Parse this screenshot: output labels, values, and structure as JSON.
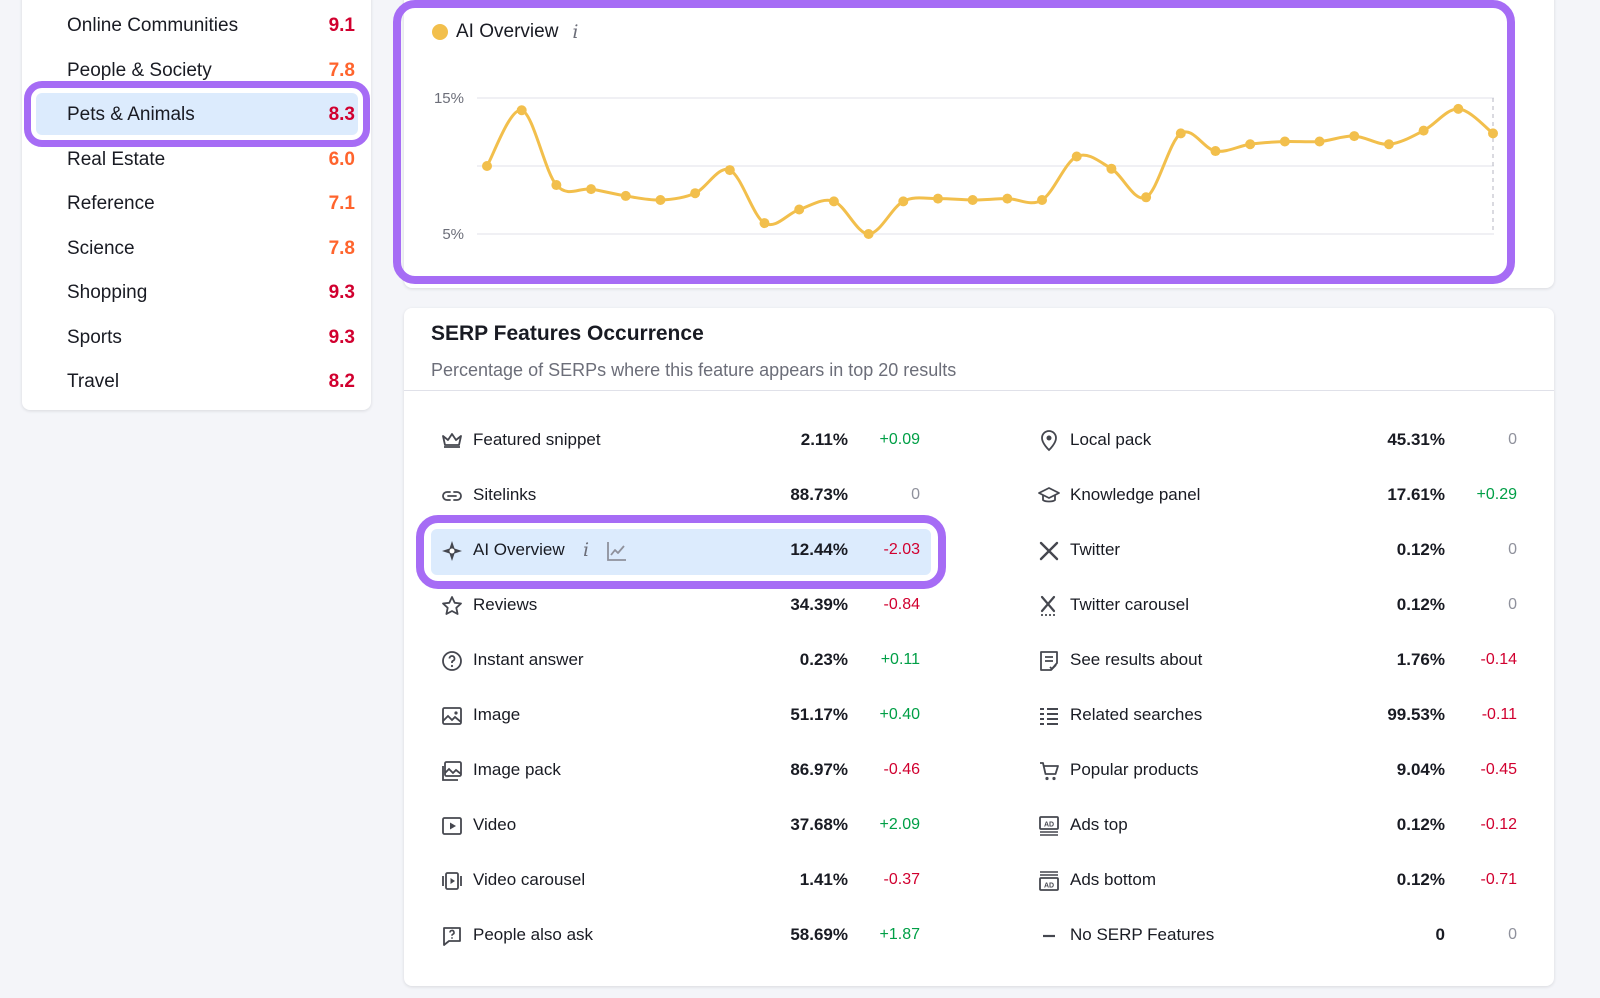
{
  "colors": {
    "accent": "#a66cf5",
    "selection": "#dcebfd",
    "series": "#f2bf4c",
    "positive": "#009f46",
    "negative": "#d1002f",
    "score_red": "#d1002f",
    "score_orange": "#ff642d"
  },
  "categories": [
    {
      "name": "Online Communities",
      "score": "9.1",
      "tone": "red"
    },
    {
      "name": "People & Society",
      "score": "7.8",
      "tone": "orange"
    },
    {
      "name": "Pets & Animals",
      "score": "8.3",
      "tone": "red",
      "selected": true
    },
    {
      "name": "Real Estate",
      "score": "6.0",
      "tone": "orange"
    },
    {
      "name": "Reference",
      "score": "7.1",
      "tone": "orange"
    },
    {
      "name": "Science",
      "score": "7.8",
      "tone": "orange"
    },
    {
      "name": "Shopping",
      "score": "9.3",
      "tone": "red"
    },
    {
      "name": "Sports",
      "score": "9.3",
      "tone": "red"
    },
    {
      "name": "Travel",
      "score": "8.2",
      "tone": "red"
    }
  ],
  "chart": {
    "legend_label": "AI Overview",
    "info_icon": "i",
    "y_ticks": [
      "15%",
      "5%"
    ]
  },
  "chart_data": {
    "type": "line",
    "series": [
      {
        "name": "AI Overview",
        "values": [
          10.0,
          14.1,
          8.6,
          8.3,
          7.8,
          7.5,
          8.0,
          9.7,
          5.8,
          6.8,
          7.4,
          5.0,
          7.4,
          7.6,
          7.5,
          7.6,
          7.5,
          10.7,
          9.8,
          7.7,
          12.4,
          11.1,
          11.6,
          11.8,
          11.8,
          12.2,
          11.6,
          12.6,
          14.2,
          12.4
        ]
      }
    ],
    "ylim": [
      5,
      15
    ],
    "y_ticks": [
      "15%",
      "5%"
    ],
    "grid": true
  },
  "serp": {
    "title": "SERP Features Occurrence",
    "subtitle": "Percentage of SERPs where this feature appears in top 20 results",
    "left": [
      {
        "icon": "crown-icon",
        "name": "Featured snippet",
        "value": "2.11%",
        "delta": "+0.09",
        "sign": "pos"
      },
      {
        "icon": "link-icon",
        "name": "Sitelinks",
        "value": "88.73%",
        "delta": "0",
        "sign": "zero"
      },
      {
        "icon": "ai-sparkle-icon",
        "name": "AI Overview",
        "value": "12.44%",
        "delta": "-2.03",
        "sign": "neg",
        "highlight": true
      },
      {
        "icon": "star-icon",
        "name": "Reviews",
        "value": "34.39%",
        "delta": "-0.84",
        "sign": "neg"
      },
      {
        "icon": "question-icon",
        "name": "Instant answer",
        "value": "0.23%",
        "delta": "+0.11",
        "sign": "pos"
      },
      {
        "icon": "image-icon",
        "name": "Image",
        "value": "51.17%",
        "delta": "+0.40",
        "sign": "pos"
      },
      {
        "icon": "image-pack-icon",
        "name": "Image pack",
        "value": "86.97%",
        "delta": "-0.46",
        "sign": "neg"
      },
      {
        "icon": "video-icon",
        "name": "Video",
        "value": "37.68%",
        "delta": "+2.09",
        "sign": "pos"
      },
      {
        "icon": "video-carousel-icon",
        "name": "Video carousel",
        "value": "1.41%",
        "delta": "-0.37",
        "sign": "neg"
      },
      {
        "icon": "people-ask-icon",
        "name": "People also ask",
        "value": "58.69%",
        "delta": "+1.87",
        "sign": "pos"
      }
    ],
    "right": [
      {
        "icon": "map-pin-icon",
        "name": "Local pack",
        "value": "45.31%",
        "delta": "0",
        "sign": "zero"
      },
      {
        "icon": "graduation-cap-icon",
        "name": "Knowledge panel",
        "value": "17.61%",
        "delta": "+0.29",
        "sign": "pos"
      },
      {
        "icon": "x-logo-icon",
        "name": "Twitter",
        "value": "0.12%",
        "delta": "0",
        "sign": "zero"
      },
      {
        "icon": "x-carousel-icon",
        "name": "Twitter carousel",
        "value": "0.12%",
        "delta": "0",
        "sign": "zero"
      },
      {
        "icon": "see-results-icon",
        "name": "See results about",
        "value": "1.76%",
        "delta": "-0.14",
        "sign": "neg"
      },
      {
        "icon": "list-icon",
        "name": "Related searches",
        "value": "99.53%",
        "delta": "-0.11",
        "sign": "neg"
      },
      {
        "icon": "cart-icon",
        "name": "Popular products",
        "value": "9.04%",
        "delta": "-0.45",
        "sign": "neg"
      },
      {
        "icon": "ad-top-icon",
        "name": "Ads top",
        "value": "0.12%",
        "delta": "-0.12",
        "sign": "neg"
      },
      {
        "icon": "ad-bottom-icon",
        "name": "Ads bottom",
        "value": "0.12%",
        "delta": "-0.71",
        "sign": "neg"
      },
      {
        "icon": "dash-icon",
        "name": "No SERP Features",
        "value": "0",
        "delta": "0",
        "sign": "zero"
      }
    ]
  }
}
